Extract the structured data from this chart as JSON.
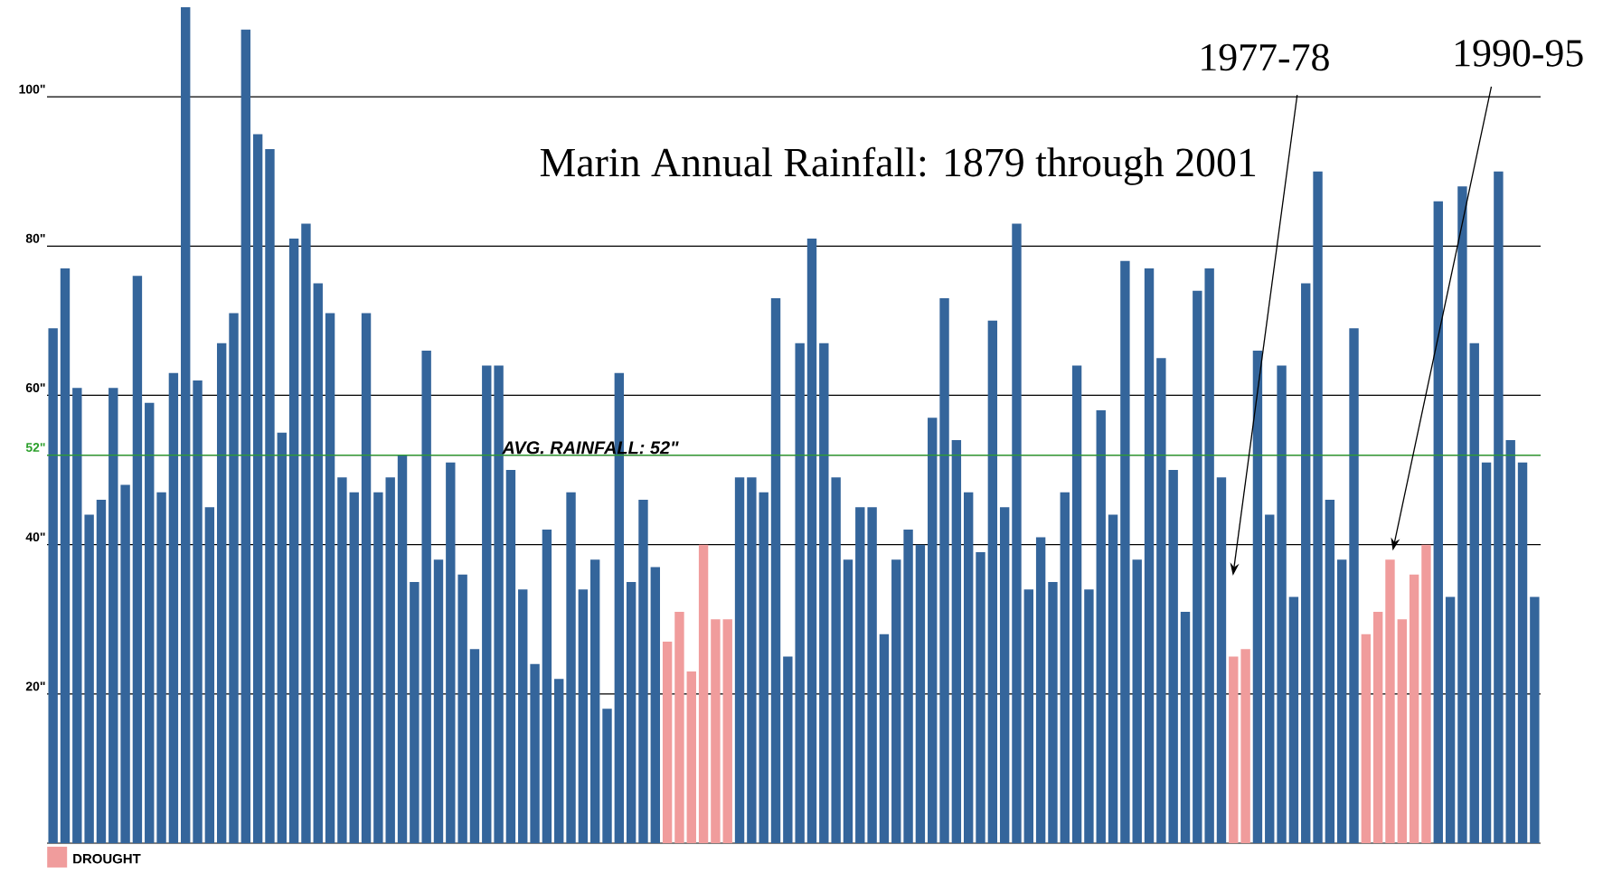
{
  "chart_data": {
    "type": "bar",
    "title": "Marin Annual Rainfall: 1879 through 2001",
    "categories": [
      null,
      null,
      null,
      null,
      null,
      null,
      null,
      null,
      null,
      null,
      null,
      null,
      null,
      null,
      null,
      null,
      null,
      null,
      null,
      null,
      null,
      null,
      null,
      null,
      null,
      null,
      null,
      null,
      null,
      null,
      null,
      null,
      null,
      null,
      null,
      null,
      null,
      null,
      null,
      null,
      null,
      null,
      null,
      null,
      null,
      null,
      null,
      null,
      null,
      null,
      null,
      null,
      null,
      null,
      null,
      null,
      null,
      null,
      null,
      null,
      null,
      null,
      null,
      null,
      null,
      null,
      null,
      null,
      null,
      null,
      null,
      null,
      null,
      null,
      null,
      null,
      null,
      null,
      null,
      null,
      null,
      null,
      null,
      null,
      null,
      null,
      null,
      null,
      null,
      null,
      null,
      null,
      null,
      null,
      null,
      null,
      null,
      null,
      null,
      null,
      null,
      null,
      null,
      null,
      null,
      null,
      null,
      null,
      null,
      null,
      null,
      null,
      null,
      null,
      null,
      null,
      null,
      null,
      null,
      null,
      null,
      null,
      null,
      null
    ],
    "series": [
      {
        "color": "#34659b",
        "values": [
          69,
          77,
          61,
          44,
          46,
          61,
          48,
          76,
          59,
          47,
          63,
          112,
          62,
          45,
          67,
          71,
          109,
          95,
          93,
          55,
          81,
          83,
          75,
          71,
          49,
          47,
          71,
          47,
          49,
          52,
          35,
          66,
          38,
          51,
          36,
          26,
          64,
          64,
          50,
          34,
          24,
          42,
          22,
          47,
          34,
          38,
          18,
          63,
          35,
          46,
          37,
          null,
          null,
          null,
          null,
          null,
          null,
          49,
          49,
          47,
          73,
          25,
          67,
          81,
          67,
          49,
          38,
          45,
          45,
          28,
          38,
          42,
          40,
          57,
          73,
          54,
          47,
          39,
          70,
          45,
          83,
          34,
          41,
          35,
          47,
          64,
          34,
          58,
          44,
          78,
          38,
          77,
          65,
          50,
          31,
          74,
          77,
          49,
          null,
          null,
          66,
          44,
          64,
          33,
          75,
          90,
          46,
          38,
          69,
          null,
          null,
          null,
          null,
          null,
          null,
          86,
          33,
          88,
          67,
          51,
          90,
          54,
          51,
          33
        ]
      },
      {
        "name": "DROUGHT",
        "color": "#f09c9c",
        "values": [
          null,
          null,
          null,
          null,
          null,
          null,
          null,
          null,
          null,
          null,
          null,
          null,
          null,
          null,
          null,
          null,
          null,
          null,
          null,
          null,
          null,
          null,
          null,
          null,
          null,
          null,
          null,
          null,
          null,
          null,
          null,
          null,
          null,
          null,
          null,
          null,
          null,
          null,
          null,
          null,
          null,
          null,
          null,
          null,
          null,
          null,
          null,
          null,
          null,
          null,
          null,
          27,
          31,
          23,
          40,
          30,
          30,
          null,
          null,
          null,
          null,
          null,
          null,
          null,
          null,
          null,
          null,
          null,
          null,
          null,
          null,
          null,
          null,
          null,
          null,
          null,
          null,
          null,
          null,
          null,
          null,
          null,
          null,
          null,
          null,
          null,
          null,
          null,
          null,
          null,
          null,
          null,
          null,
          null,
          null,
          null,
          null,
          null,
          25,
          26,
          null,
          null,
          null,
          null,
          null,
          null,
          null,
          null,
          null,
          28,
          31,
          38,
          30,
          36,
          40,
          null,
          null,
          null,
          null,
          null,
          null,
          null,
          null,
          null
        ]
      }
    ],
    "ylim": [
      0,
      112
    ],
    "yticks": [
      {
        "value": 20,
        "label": "20\""
      },
      {
        "value": 40,
        "label": "40\""
      },
      {
        "value": 52,
        "label": "52\""
      },
      {
        "value": 60,
        "label": "60\""
      },
      {
        "value": 80,
        "label": "80\""
      },
      {
        "value": 100,
        "label": "100\""
      }
    ],
    "grid": "y",
    "legend": "bottom left",
    "ref_lines": [
      {
        "axis": "y",
        "value": 52,
        "label": "AVG. RAINFALL: 52\"",
        "color": "#2ca02c"
      }
    ],
    "annotations": [
      "1977-78",
      "1990-95"
    ]
  }
}
